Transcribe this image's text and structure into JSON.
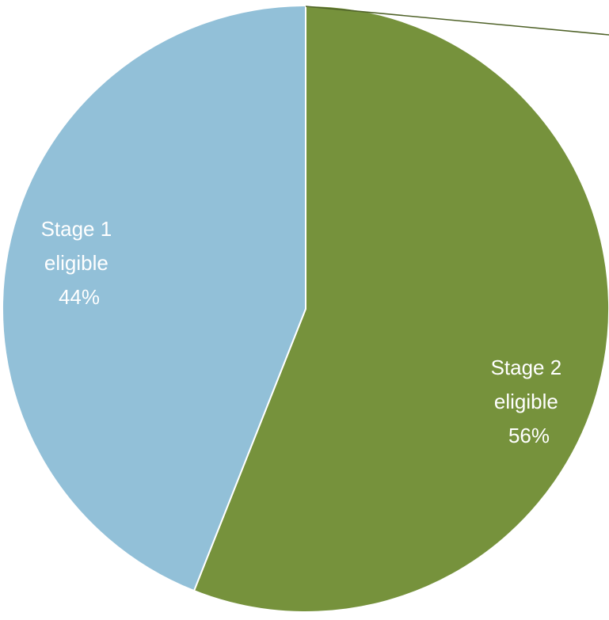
{
  "chart_data": {
    "type": "pie",
    "slices": [
      {
        "label_lines": [
          "Stage 1",
          "eligible",
          "44%"
        ],
        "value": 44,
        "color": "#92c0d8"
      },
      {
        "label_lines": [
          "Stage 2",
          "eligible",
          "56%"
        ],
        "value": 56,
        "color": "#76923c"
      }
    ],
    "start": "top",
    "direction": "clockwise",
    "legend": "none",
    "leader_line_color": "#4f6228"
  }
}
